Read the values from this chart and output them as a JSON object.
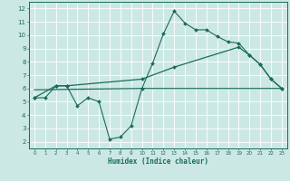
{
  "xlabel": "Humidex (Indice chaleur)",
  "bg_color": "#cce8e4",
  "grid_color": "#ffffff",
  "line_color": "#1a6b5a",
  "xlim": [
    -0.5,
    23.5
  ],
  "ylim": [
    1.5,
    12.5
  ],
  "xticks": [
    0,
    1,
    2,
    3,
    4,
    5,
    6,
    7,
    8,
    9,
    10,
    11,
    12,
    13,
    14,
    15,
    16,
    17,
    18,
    19,
    20,
    21,
    22,
    23
  ],
  "yticks": [
    2,
    3,
    4,
    5,
    6,
    7,
    8,
    9,
    10,
    11,
    12
  ],
  "line1_x": [
    0,
    1,
    2,
    3,
    4,
    5,
    6,
    7,
    8,
    9,
    10,
    11,
    12,
    13,
    14,
    15,
    16,
    17,
    18,
    19,
    20,
    21,
    22,
    23
  ],
  "line1_y": [
    5.3,
    5.3,
    6.2,
    6.2,
    4.7,
    5.3,
    5.0,
    2.2,
    2.35,
    3.2,
    6.0,
    7.9,
    10.1,
    11.8,
    10.9,
    10.4,
    10.4,
    9.9,
    9.5,
    9.4,
    8.5,
    7.8,
    6.7,
    6.0
  ],
  "line2_x": [
    0,
    10,
    23
  ],
  "line2_y": [
    5.9,
    6.0,
    6.0
  ],
  "line3_x": [
    0,
    2,
    3,
    10,
    13,
    19,
    20,
    21,
    22,
    23
  ],
  "line3_y": [
    5.3,
    6.2,
    6.2,
    6.7,
    7.6,
    9.1,
    8.5,
    7.8,
    6.7,
    6.0
  ]
}
